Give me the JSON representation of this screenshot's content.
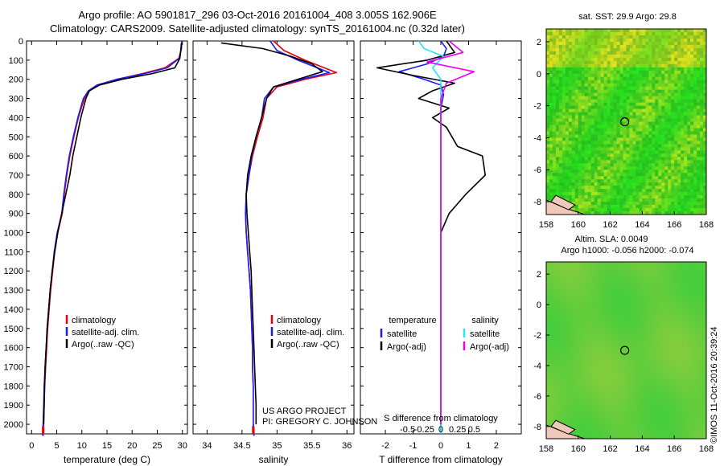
{
  "header": {
    "line1": "Argo profile: AO 5901817_296 03-Oct-2016 20161004_408 3.005S 162.906E",
    "line2": "Climatology: CARS2009. Satellite-adjusted climatology: synTS_20161004.nc (0.32d later)"
  },
  "maps": {
    "sst_title": "sat. SST: 29.9 Argo: 29.8",
    "sla_title1": "Altim. SLA: 0.0049",
    "sla_title2": "Argo h1000: -0.056 h2000: -0.074",
    "x_ticks": [
      "158",
      "160",
      "162",
      "164",
      "166",
      "168"
    ],
    "y_ticks": [
      "2",
      "0",
      "-2",
      "-4",
      "-6",
      "-8"
    ],
    "y_tick_values": [
      2,
      0,
      -2,
      -4,
      -6,
      -8
    ],
    "x_tick_values": [
      158,
      160,
      162,
      164,
      166,
      168
    ],
    "xlim": [
      158,
      168
    ],
    "ylim": [
      -8.8,
      2.8
    ],
    "argo_position": {
      "lon": 162.906,
      "lat": -3.005
    }
  },
  "credit": {
    "line1": "US ARGO PROJECT",
    "line2": "PI: GREGORY C. JOHNSON",
    "stamp": "©IMOS 11-Oct-2016 20:39:24"
  },
  "colors": {
    "climatology": "#e8000b",
    "satellite": "#1a1aff",
    "argo": "#000000",
    "sal_satellite": "#22e6f0",
    "sal_argo": "#f000f0"
  },
  "chart_data": [
    {
      "type": "line",
      "name": "temperature",
      "xlabel": "temperature (deg C)",
      "ylabel": "depth",
      "xlim": [
        -1,
        31
      ],
      "ylim": [
        2050,
        0
      ],
      "x_ticks": [
        "0",
        "5",
        "10",
        "15",
        "20",
        "25",
        "30"
      ],
      "x_tick_values": [
        0,
        5,
        10,
        15,
        20,
        25,
        30
      ],
      "y_ticks": [
        "0",
        "100",
        "200",
        "300",
        "400",
        "500",
        "600",
        "700",
        "800",
        "900",
        "1000",
        "1100",
        "1200",
        "1300",
        "1400",
        "1500",
        "1600",
        "1700",
        "1800",
        "1900",
        "2000"
      ],
      "legend": [
        "climatology",
        "satellite-adj. clim.",
        "Argo(..raw -QC)"
      ],
      "series": [
        {
          "name": "climatology",
          "color": "climatology",
          "x": [
            29.9,
            29.8,
            29.3,
            26.5,
            22,
            17,
            13,
            11.5,
            10.5,
            9.3,
            8.4,
            7.6,
            7,
            6.5,
            6.1,
            5.2,
            4.6,
            4.2,
            3.8,
            3.5,
            3.2,
            3.0,
            2.8,
            2.6,
            2.5,
            2.4,
            2.3
          ],
          "y": [
            0,
            40,
            90,
            140,
            170,
            200,
            230,
            260,
            300,
            400,
            500,
            600,
            700,
            800,
            900,
            1000,
            1100,
            1200,
            1300,
            1400,
            1500,
            1600,
            1700,
            1800,
            1900,
            2000,
            2060
          ]
        },
        {
          "name": "satellite-adj. clim.",
          "color": "satellite",
          "x": [
            29.9,
            29.8,
            29.4,
            27,
            22.5,
            17,
            13,
            11.3,
            10.3,
            9.2,
            8.3,
            7.5,
            6.9,
            6.4,
            6.0,
            5.1,
            4.5,
            4.1,
            3.7,
            3.4,
            3.1,
            2.9,
            2.7,
            2.5,
            2.4,
            2.3,
            2.2
          ],
          "y": [
            0,
            40,
            90,
            140,
            170,
            200,
            230,
            260,
            300,
            400,
            500,
            600,
            700,
            800,
            900,
            1000,
            1100,
            1200,
            1300,
            1400,
            1500,
            1600,
            1700,
            1800,
            1900,
            2000,
            2060
          ]
        },
        {
          "name": "Argo(..raw -QC)",
          "color": "argo",
          "x": [
            29.8,
            29.7,
            29.5,
            28.5,
            24,
            18,
            13.5,
            11.5,
            10.8,
            9.8,
            9.0,
            8.2,
            7.6,
            6.8,
            6.0,
            5.2,
            4.6,
            4.1,
            3.7,
            3.4,
            3.1,
            2.9,
            2.7,
            2.6,
            2.5,
            2.4
          ],
          "y": [
            10,
            40,
            90,
            140,
            170,
            200,
            230,
            260,
            300,
            400,
            500,
            600,
            700,
            800,
            900,
            1000,
            1100,
            1200,
            1300,
            1400,
            1500,
            1600,
            1700,
            1800,
            1900,
            2000
          ]
        }
      ]
    },
    {
      "type": "line",
      "name": "salinity",
      "xlabel": "salinity",
      "xlim": [
        33.8,
        36.1
      ],
      "ylim": [
        2050,
        0
      ],
      "x_ticks": [
        "34",
        "34.5",
        "35",
        "35.5",
        "36"
      ],
      "x_tick_values": [
        34,
        34.5,
        35,
        35.5,
        36
      ],
      "legend": [
        "climatology",
        "satellite-adj. clim.",
        "Argo(..raw -QC)"
      ],
      "series": [
        {
          "name": "climatology",
          "color": "climatology",
          "x": [
            34.95,
            35.1,
            35.4,
            35.85,
            35.4,
            35.0,
            34.85,
            34.8,
            34.72,
            34.65,
            34.6,
            34.56,
            34.55,
            34.56,
            34.58,
            34.6,
            34.62,
            34.63,
            34.64,
            34.65,
            34.65,
            34.66,
            34.66,
            34.66,
            34.66,
            34.67,
            34.67
          ],
          "y": [
            0,
            50,
            100,
            165,
            200,
            240,
            300,
            400,
            500,
            600,
            700,
            800,
            900,
            1000,
            1100,
            1200,
            1300,
            1400,
            1500,
            1600,
            1700,
            1800,
            1900,
            1950,
            2000,
            2030,
            2060
          ]
        },
        {
          "name": "satellite-adj. clim.",
          "color": "satellite",
          "x": [
            34.9,
            35.0,
            35.3,
            35.75,
            35.35,
            34.95,
            34.82,
            34.78,
            34.7,
            34.64,
            34.6,
            34.56,
            34.55,
            34.56,
            34.58,
            34.6,
            34.62,
            34.63,
            34.64,
            34.65,
            34.65,
            34.66,
            34.66,
            34.66,
            34.66,
            34.67,
            34.67
          ],
          "y": [
            0,
            50,
            100,
            165,
            200,
            240,
            300,
            400,
            500,
            600,
            700,
            800,
            900,
            1000,
            1100,
            1200,
            1300,
            1400,
            1500,
            1600,
            1700,
            1800,
            1900,
            1950,
            2000,
            2030,
            2060
          ]
        },
        {
          "name": "Argo(..raw -QC)",
          "color": "argo",
          "x": [
            34.2,
            34.8,
            35.2,
            35.5,
            35.65,
            35.3,
            34.95,
            34.85,
            34.78,
            34.7,
            34.63,
            34.58,
            34.56,
            34.57,
            34.59,
            34.61,
            34.63,
            34.64,
            34.65,
            34.66,
            34.67,
            34.68,
            34.69,
            34.7,
            34.7
          ],
          "y": [
            10,
            40,
            80,
            120,
            160,
            200,
            240,
            300,
            400,
            500,
            600,
            700,
            800,
            900,
            1000,
            1100,
            1200,
            1300,
            1400,
            1500,
            1600,
            1700,
            1800,
            1900,
            2000
          ]
        }
      ]
    },
    {
      "type": "line",
      "name": "difference",
      "xlabel_top": "S difference from climatology",
      "xlabel": "T difference from climatology",
      "xlim": [
        -2.9,
        2.9
      ],
      "ylim": [
        2050,
        0
      ],
      "x_ticks": [
        "-2",
        "-1",
        "0",
        "1",
        "2"
      ],
      "x_tick_values": [
        -2,
        -1,
        0,
        1,
        2
      ],
      "s_ticks": [
        "-0.5",
        "-0.25",
        "0",
        "0.25",
        "0.5"
      ],
      "s_tick_values": [
        -0.5,
        -0.25,
        0,
        0.25,
        0.5
      ],
      "legend_temperature": "temperature",
      "legend_salinity": "salinity",
      "legend": [
        "satellite",
        "Argo(-adj)",
        "satellite",
        "Argo(-adj)"
      ],
      "series": [
        {
          "name": "T satellite",
          "color": "satellite",
          "x": [
            0,
            0.2,
            0.1,
            -0.5,
            -1.5,
            -0.6,
            0.0,
            0.1,
            0.0,
            0.0,
            0.0,
            0.0,
            0.0,
            0.0,
            0.0,
            0.0,
            0.0,
            0.0,
            0.0,
            0.0
          ],
          "y": [
            0,
            40,
            80,
            120,
            160,
            200,
            230,
            280,
            350,
            500,
            700,
            900,
            1100,
            1300,
            1500,
            1700,
            1800,
            1900,
            2000,
            2050
          ]
        },
        {
          "name": "T Argo(-adj)",
          "color": "argo",
          "x": [
            0.2,
            0.5,
            -0.5,
            -2.3,
            -1.0,
            0.5,
            -0.3,
            -0.8,
            0.3,
            -0.3,
            0.2,
            0.6,
            1.5,
            1.6,
            0.9,
            0.3,
            0.0,
            0.0,
            0.0,
            0.0,
            0.0
          ],
          "y": [
            0,
            60,
            100,
            140,
            180,
            220,
            260,
            300,
            350,
            400,
            450,
            550,
            600,
            700,
            800,
            900,
            1000,
            1200,
            1500,
            1800,
            2000
          ]
        },
        {
          "name": "S satellite",
          "color": "sal_satellite",
          "x": [
            -0.8,
            -0.6,
            0.1,
            -0.3,
            0.0,
            0.0,
            0.0,
            0.0,
            0.0,
            0.0,
            0.0,
            0.0,
            0.0,
            0.0,
            0.0
          ],
          "y": [
            0,
            40,
            80,
            140,
            200,
            300,
            400,
            600,
            800,
            1000,
            1200,
            1500,
            1700,
            1900,
            2050
          ]
        },
        {
          "name": "S Argo(-adj)",
          "color": "sal_argo",
          "x": [
            0.3,
            0.8,
            -0.5,
            1.2,
            0.2,
            0.0,
            0.0,
            0.0,
            0.0,
            0.0,
            0.0,
            0.0,
            0.0
          ],
          "y": [
            0,
            60,
            110,
            160,
            220,
            300,
            400,
            600,
            800,
            1000,
            1300,
            1600,
            2000
          ]
        }
      ]
    }
  ]
}
